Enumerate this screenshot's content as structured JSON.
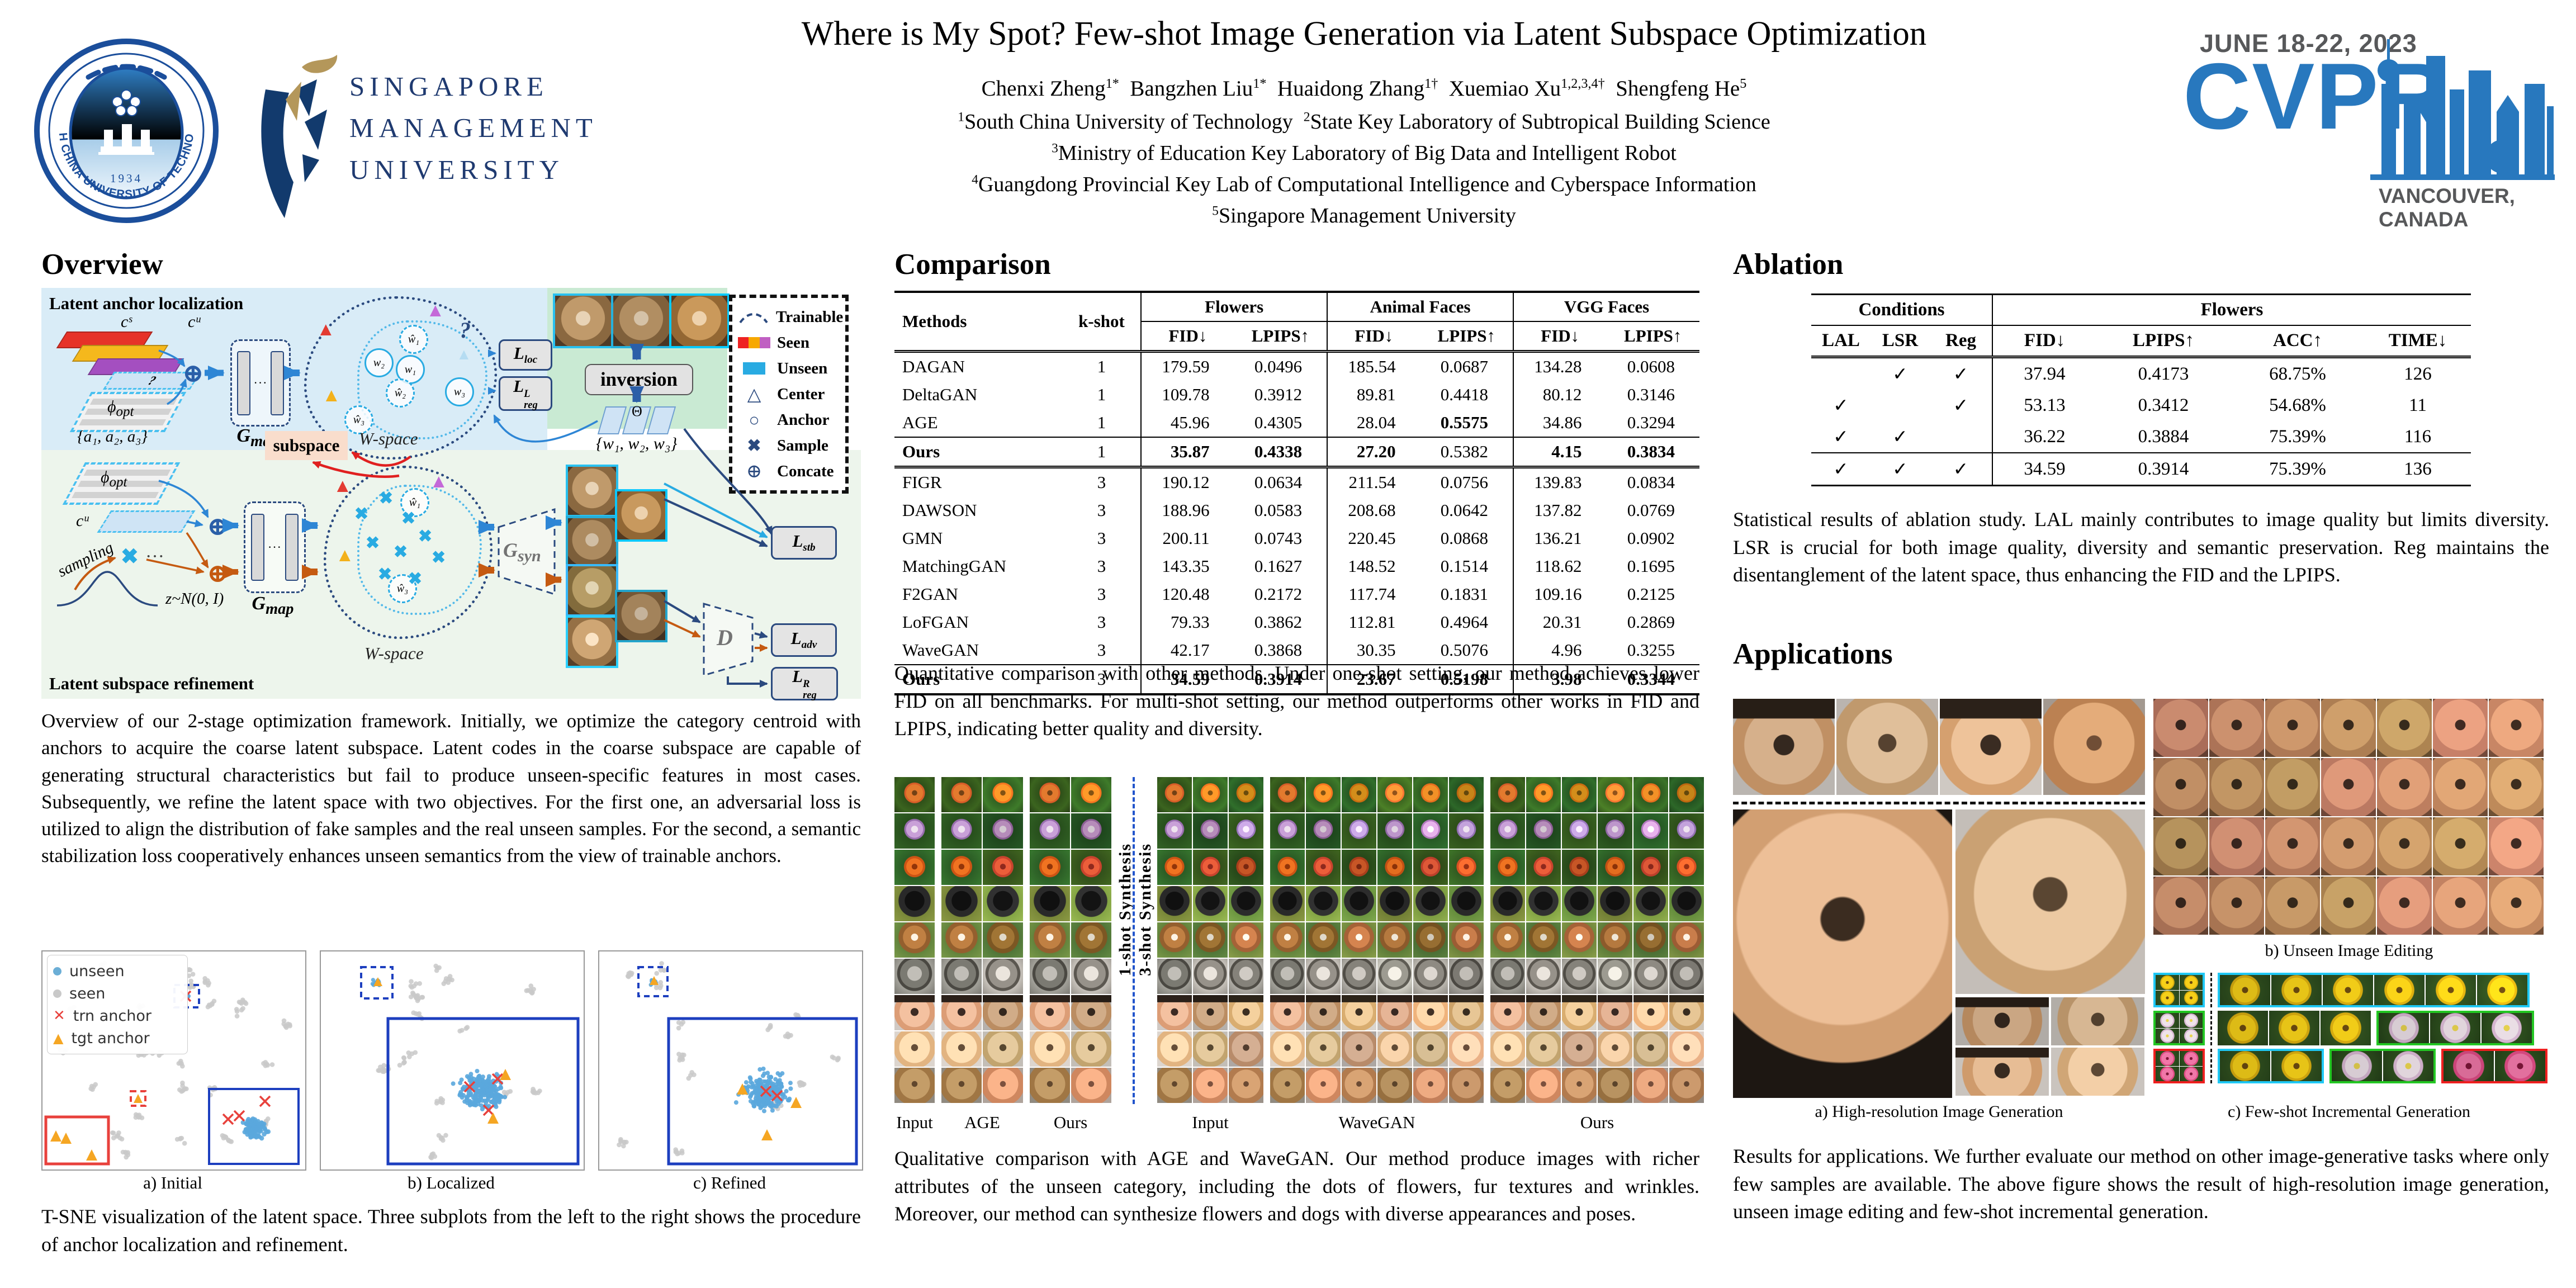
{
  "header": {
    "title": "Where is My Spot? Few-shot Image Generation via Latent Subspace Optimization",
    "authors": [
      {
        "n": "Chenxi Zheng",
        "s": "1*"
      },
      {
        "n": "Bangzhen Liu",
        "s": "1*"
      },
      {
        "n": "Huaidong Zhang",
        "s": "1†"
      },
      {
        "n": "Xuemiao Xu",
        "s": "1,2,3,4†"
      },
      {
        "n": "Shengfeng He",
        "s": "5"
      }
    ],
    "affil_lines": [
      [
        [
          "1",
          "South China University of Technology"
        ],
        [
          "2",
          "State Key Laboratory of Subtropical Building Science"
        ]
      ],
      [
        [
          "3",
          "Ministry of Education Key Laboratory of Big Data and Intelligent Robot"
        ]
      ],
      [
        [
          "4",
          "Guangdong Provincial Key Lab of Computational Intelligence and Cyberspace Information"
        ]
      ],
      [
        [
          "5",
          "Singapore Management University"
        ]
      ]
    ],
    "scut_ring": "SOUTH CHINA UNIVERSITY OF TECHNOLOGY",
    "scut_year": "1934",
    "smu_lines": [
      "SINGAPORE",
      "MANAGEMENT",
      "UNIVERSITY"
    ],
    "cvpr": {
      "date": "JUNE 18-22, 2023",
      "name": "CVPR",
      "city": "VANCOUVER, CANADA"
    }
  },
  "overview": {
    "heading": "Overview",
    "caption": "Overview of our 2-stage optimization framework. Initially, we optimize the category centroid with anchors to acquire the coarse latent subspace. Latent codes in the coarse subspace are capable of generating structural characteristics but fail to produce unseen-specific features in most cases. Subsequently, we refine the latent space with two objectives. For the first one, an adversarial loss is utilized to align the distribution of fake samples and the real unseen samples. For the second, a semantic stabilization loss cooperatively enhances unseen semantics from the view of trainable anchors.",
    "diagram": {
      "s1": "Latent anchor localization",
      "s2": "Latent subspace refinement",
      "legend": [
        "Trainable",
        "Seen",
        "Unseen",
        "Center",
        "Anchor",
        "Sample",
        "Concate"
      ],
      "cs": "cˢ",
      "cu": "cᵘ",
      "phi": "ϕ",
      "opt": "opt",
      "anchors": "{a₁, a₂, a₃}",
      "G": "G",
      "map": "map",
      "syn": "syn",
      "D": "D",
      "dots": "···",
      "oplus": "⊕",
      "L": "L",
      "loc": "loc",
      "reg": "reg",
      "stb": "stb",
      "adv": "adv",
      "supL": "L",
      "supR": "R",
      "subspace": "subspace",
      "inversion": "inversion",
      "wspace": "W-space",
      "wset": "{w₁, w₂, w₃}",
      "theta": "Θ",
      "sampling": "sampling",
      "z": "z~N(0, I)",
      "q": "?",
      "w1": "w₁",
      "w2": "w₂",
      "w3": "w₃",
      "wh1": "ŵ₁",
      "wh2": "ŵ₂",
      "wh3": "ŵ₃",
      "tri_red": "▲",
      "tri_yellow": "▲",
      "tri_purple": "▲",
      "tri_faded": "▲",
      "x_glyph": "✖"
    },
    "tsne": {
      "legend": [
        "unseen",
        "seen",
        "trn anchor",
        "tgt anchor"
      ],
      "captions": [
        "a) Initial",
        "b) Localized",
        "c) Refined"
      ],
      "caption": "T-SNE visualization of the latent space. Three subplots from the left to the right shows the procedure of anchor localization and refinement."
    }
  },
  "comparison": {
    "heading": "Comparison",
    "table": {
      "col_method": "Methods",
      "col_kshot": "k-shot",
      "groups": [
        "Flowers",
        "Animal Faces",
        "VGG Faces"
      ],
      "sub": [
        "FID↓",
        "LPIPS↑"
      ],
      "rows": [
        {
          "m": "DAGAN",
          "k": "1",
          "v": [
            "179.59",
            "0.0496",
            "185.54",
            "0.0687",
            "134.28",
            "0.0608"
          ]
        },
        {
          "m": "DeltaGAN",
          "k": "1",
          "v": [
            "109.78",
            "0.3912",
            "89.81",
            "0.4418",
            "80.12",
            "0.3146"
          ]
        },
        {
          "m": "AGE",
          "k": "1",
          "v": [
            "45.96",
            "0.4305",
            "28.04",
            "0.5575",
            "34.86",
            "0.3294"
          ],
          "bv": [
            3
          ]
        },
        {
          "m": "Ours",
          "k": "1",
          "b": true,
          "v": [
            "35.87",
            "0.4338",
            "27.20",
            "0.5382",
            "4.15",
            "0.3834"
          ],
          "bv": [
            0,
            1,
            2,
            4,
            5
          ]
        },
        {
          "m": "FIGR",
          "k": "3",
          "v": [
            "190.12",
            "0.0634",
            "211.54",
            "0.0756",
            "139.83",
            "0.0834"
          ]
        },
        {
          "m": "DAWSON",
          "k": "3",
          "v": [
            "188.96",
            "0.0583",
            "208.68",
            "0.0642",
            "137.82",
            "0.0769"
          ]
        },
        {
          "m": "GMN",
          "k": "3",
          "v": [
            "200.11",
            "0.0743",
            "220.45",
            "0.0868",
            "136.21",
            "0.0902"
          ]
        },
        {
          "m": "MatchingGAN",
          "k": "3",
          "v": [
            "143.35",
            "0.1627",
            "148.52",
            "0.1514",
            "118.62",
            "0.1695"
          ]
        },
        {
          "m": "F2GAN",
          "k": "3",
          "v": [
            "120.48",
            "0.2172",
            "117.74",
            "0.1831",
            "109.16",
            "0.2125"
          ]
        },
        {
          "m": "LoFGAN",
          "k": "3",
          "v": [
            "79.33",
            "0.3862",
            "112.81",
            "0.4964",
            "20.31",
            "0.2869"
          ]
        },
        {
          "m": "WaveGAN",
          "k": "3",
          "v": [
            "42.17",
            "0.3868",
            "30.35",
            "0.5076",
            "4.96",
            "0.3255"
          ]
        },
        {
          "m": "Ours",
          "k": "3",
          "b": true,
          "v": [
            "34.59",
            "0.3914",
            "23.67",
            "0.5198",
            "3.98",
            "0.3344"
          ],
          "bv": [
            0,
            1,
            2,
            3,
            4,
            5
          ]
        }
      ]
    },
    "caption": "Quantitative comparison with other methods. Under one-shot setting, our method achieves lower FID on all benchmarks. For multi-shot setting, our method outperforms other works in FID and LPIPS, indicating better quality and diversity.",
    "figure": {
      "left_labels": [
        "Input",
        "AGE",
        "Ours"
      ],
      "right_labels": [
        "Input",
        "WaveGAN",
        "Ours"
      ],
      "v1": "1-shot Synthesis",
      "v2": "3-shot Synthesis"
    },
    "fig_caption": "Qualitative comparison with AGE and WaveGAN. Our method produce images with richer attributes of the unseen category, including the dots of flowers, fur textures and wrinkles. Moreover, our method can synthesize flowers and dogs with diverse appearances and poses."
  },
  "ablation": {
    "heading": "Ablation",
    "table": {
      "g1": "Conditions",
      "g2": "Flowers",
      "conds": [
        "LAL",
        "LSR",
        "Reg"
      ],
      "metrics": [
        "FID↓",
        "LPIPS↑",
        "ACC↑",
        "TIME↓"
      ],
      "check": "✓",
      "rows": [
        {
          "c": [
            0,
            1,
            1
          ],
          "v": [
            "37.94",
            "0.4173",
            "68.75%",
            "126"
          ]
        },
        {
          "c": [
            1,
            0,
            1
          ],
          "v": [
            "53.13",
            "0.3412",
            "54.68%",
            "11"
          ]
        },
        {
          "c": [
            1,
            1,
            0
          ],
          "v": [
            "36.22",
            "0.3884",
            "75.39%",
            "116"
          ]
        },
        {
          "c": [
            1,
            1,
            1
          ],
          "v": [
            "34.59",
            "0.3914",
            "75.39%",
            "136"
          ]
        }
      ]
    },
    "caption": "Statistical results of ablation study. LAL mainly contributes to image quality but limits diversity. LSR is crucial for both image quality, diversity and semantic preservation. Reg maintains the disentanglement of the latent space, thus enhancing the FID and the LPIPS."
  },
  "applications": {
    "heading": "Applications",
    "caps": {
      "a": "a) High-resolution Image Generation",
      "b": "b) Unseen Image Editing",
      "c": "c) Few-shot Incremental Generation"
    },
    "caption": "Results for applications. We further evaluate our method on other image-generative tasks where only few samples are available. The above figure shows the result of high-resolution image generation, unseen image editing and few-shot incremental generation."
  }
}
